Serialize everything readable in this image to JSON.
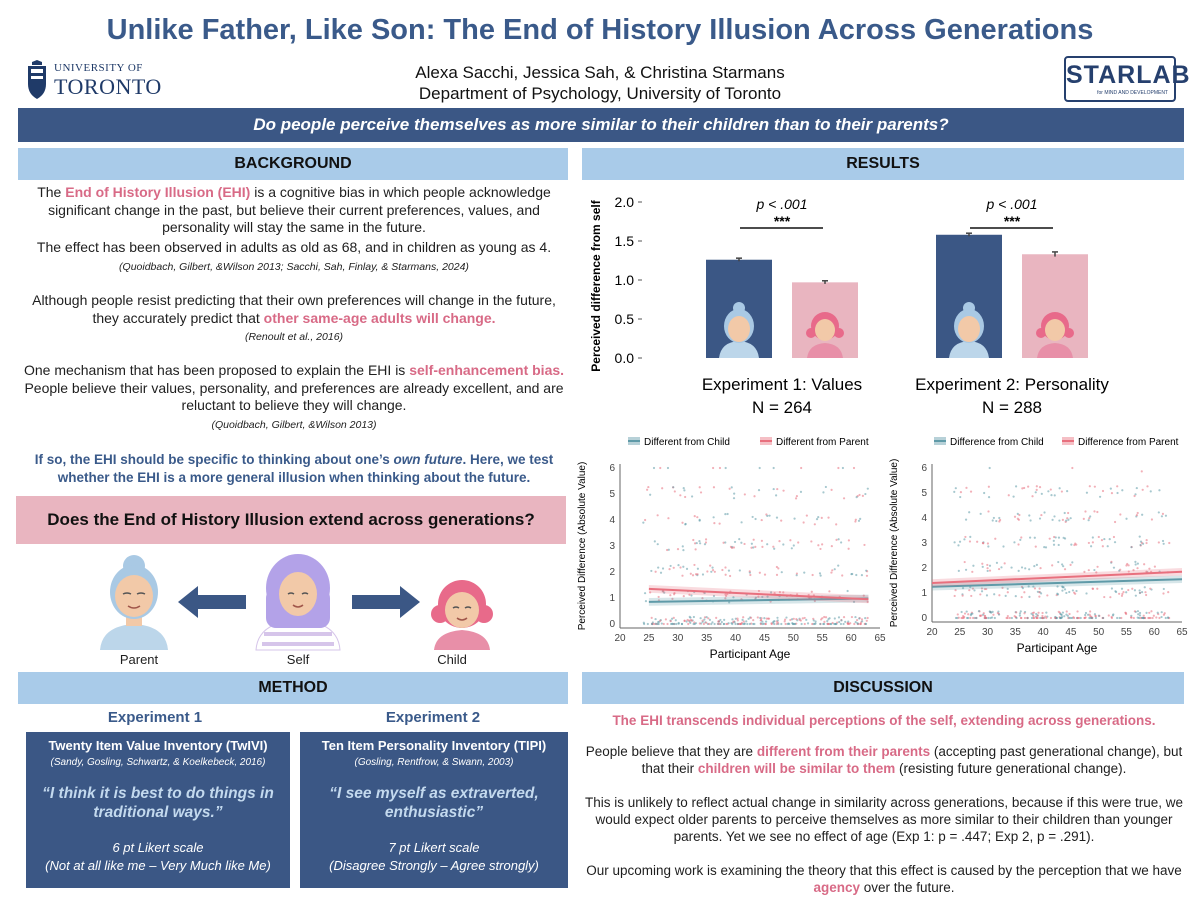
{
  "title": "Unlike Father, Like Son:  The End of History Illusion Across Generations",
  "authors": "Alexa Sacchi, Jessica Sah, & Christina Starmans",
  "department": "Department of Psychology, University of Toronto",
  "logos": {
    "uoft_top": "UNIVERSITY OF",
    "uoft_bottom": "TORONTO",
    "starlab": "STARLAB",
    "starlab_sub": "for MIND AND DEVELOPMENT"
  },
  "question": "Do people perceive themselves as more similar to their children than to their parents?",
  "background": {
    "heading": "BACKGROUND",
    "p1_pre": "The ",
    "p1_highlight": "End of History Illusion (EHI)",
    "p1_post": " is a cognitive bias in which people acknowledge significant change in the past, but believe their current preferences, values, and personality will stay the same in the future.",
    "p2": "The effect has been observed in adults as old as 68, and in children as young as 4.",
    "p2_cite": "(Quoidbach, Gilbert, &Wilson 2013; Sacchi, Sah, Finlay, & Starmans, 2024)",
    "p3_pre": "Although people resist predicting that their own preferences will change in the future, they accurately predict that ",
    "p3_highlight": "other same-age adults will change.",
    "p3_cite": "(Renoult et al., 2016)",
    "p4_pre": "One mechanism that has been proposed to explain the EHI is ",
    "p4_highlight": "self-enhancement bias.",
    "p4_post": " People believe their values, personality, and preferences are already excellent, and are reluctant to believe they will change.",
    "p4_cite": "(Quoidbach, Gilbert, &Wilson 2013)",
    "p5_pre": "If so, the EHI should be specific to thinking about one’s ",
    "p5_italic": "own future",
    "p5_post": ". Here, we test whether the EHI is a more general illusion when thinking about the future."
  },
  "extend_question": "Does the End of History Illusion extend across generations?",
  "figure_labels": {
    "parent": "Parent",
    "self": "Self",
    "child": "Child"
  },
  "method": {
    "heading": "METHOD",
    "exp1": {
      "title": "Experiment 1",
      "box_title": "Twenty Item Value Inventory (TwIVI)",
      "citation": "(Sandy, Gosling, Schwartz, & Koelkebeck, 2016)",
      "quote": "“I think it is best to do things in traditional ways.”",
      "scale": "6 pt Likert scale",
      "anchors": "(Not at all like me – Very Much like Me)"
    },
    "exp2": {
      "title": "Experiment 2",
      "box_title": "Ten Item Personality Inventory (TIPI)",
      "citation": "(Gosling, Rentfrow, & Swann, 2003)",
      "quote": "“I see myself as extraverted, enthusiastic”",
      "scale": "7 pt Likert scale",
      "anchors": "(Disagree Strongly – Agree strongly)"
    }
  },
  "results": {
    "heading": "RESULTS",
    "exp1_label": "Experiment 1: Values",
    "exp1_n": "N = 264",
    "exp2_label": "Experiment 2: Personality",
    "exp2_n": "N = 288",
    "sig_p": "p < .001",
    "sig_stars": "***"
  },
  "discussion": {
    "heading": "DISCUSSION",
    "lead": "The EHI transcends individual perceptions of the self, extending across generations.",
    "p1_pre": "People believe that they are ",
    "p1_h1": "different from their parents",
    "p1_mid": " (accepting past generational change), but that their ",
    "p1_h2": "children will be similar to them",
    "p1_post": " (resisting future generational change).",
    "p2": "This is unlikely to reflect actual change in similarity across generations, because if this were true, we would expect older parents to perceive themselves as more similar to their children than younger parents. Yet we see no effect of age (Exp 1: p = .447; Exp 2, p = .291).",
    "p3_pre": "Our upcoming work is examining the theory that this effect is caused by the perception that we have ",
    "p3_highlight": "agency",
    "p3_post": " over the future."
  },
  "chart_data": [
    {
      "type": "bar",
      "ylabel": "Perceived difference from self",
      "ylim": [
        0,
        2.0
      ],
      "yticks": [
        0.0,
        0.5,
        1.0,
        1.5,
        2.0
      ],
      "categories": [
        "Experiment 1: Values",
        "Experiment 2: Personality"
      ],
      "series": [
        {
          "values": [
            1.26,
            1.58
          ],
          "errors": [
            0.02,
            0.02
          ],
          "color": "#3b5785"
        },
        {
          "values": [
            0.97,
            1.33
          ],
          "errors": [
            0.02,
            0.03
          ],
          "color": "#e9b5c0"
        }
      ]
    },
    {
      "type": "scatter",
      "xlabel": "Participant Age",
      "ylabel": "Perceived Difference (Absolute Value)",
      "xlim": [
        20,
        65
      ],
      "ylim": [
        0,
        6
      ],
      "xticks": [
        20,
        25,
        30,
        35,
        40,
        45,
        50,
        55,
        60,
        65
      ],
      "yticks": [
        0,
        1,
        2,
        3,
        4,
        5,
        6
      ],
      "series": [
        {
          "name": "Different from Child",
          "color": "#5f9aa8",
          "trend": [
            [
              25,
              0.85
            ],
            [
              63,
              0.98
            ]
          ]
        },
        {
          "name": "Different from Parent",
          "color": "#e8707e",
          "trend": [
            [
              25,
              1.35
            ],
            [
              63,
              0.95
            ]
          ]
        }
      ]
    },
    {
      "type": "scatter",
      "xlabel": "Participant Age",
      "ylabel": "Perceived Difference (Absolute Value)",
      "xlim": [
        20,
        65
      ],
      "ylim": [
        0,
        6
      ],
      "xticks": [
        20,
        25,
        30,
        35,
        40,
        45,
        50,
        55,
        60,
        65
      ],
      "yticks": [
        0,
        1,
        2,
        3,
        4,
        5,
        6
      ],
      "series": [
        {
          "name": "Difference from Child",
          "color": "#5f9aa8",
          "trend": [
            [
              20,
              1.25
            ],
            [
              65,
              1.55
            ]
          ]
        },
        {
          "name": "Difference from Parent",
          "color": "#e8707e",
          "trend": [
            [
              20,
              1.4
            ],
            [
              65,
              1.85
            ]
          ]
        }
      ]
    }
  ]
}
